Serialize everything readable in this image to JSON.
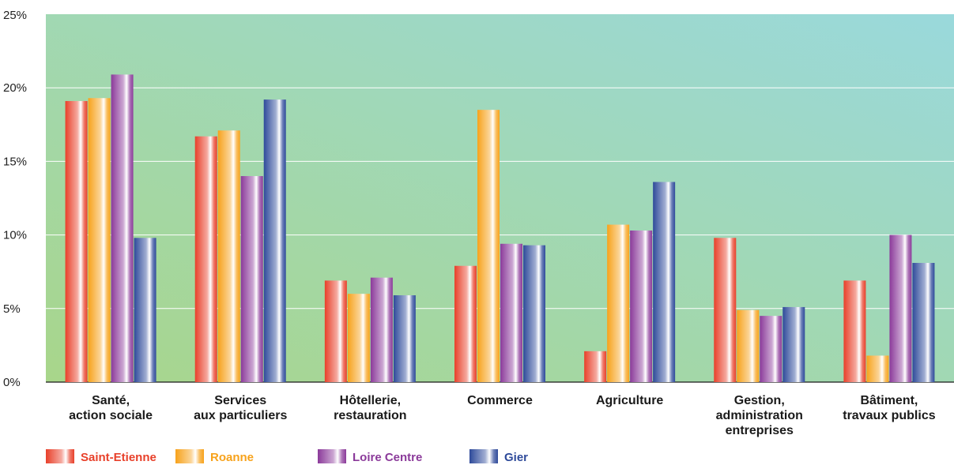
{
  "chart_data": {
    "type": "bar",
    "title": "",
    "xlabel": "",
    "ylabel": "",
    "ylim": [
      0,
      25
    ],
    "yticks": [
      0,
      5,
      10,
      15,
      20,
      25
    ],
    "ytick_labels": [
      "0%",
      "5%",
      "10%",
      "15%",
      "20%",
      "25%"
    ],
    "grid": true,
    "legend_position": "bottom-left",
    "categories": [
      [
        "Santé,",
        "action sociale"
      ],
      [
        "Services",
        "aux particuliers"
      ],
      [
        "Hôtellerie,",
        "restauration"
      ],
      [
        "Commerce"
      ],
      [
        "Agriculture"
      ],
      [
        "Gestion,",
        "administration",
        "entreprises"
      ],
      [
        "Bâtiment,",
        "travaux publics"
      ]
    ],
    "series": [
      {
        "name": "Saint-Etienne",
        "color": "#e8402a",
        "values": [
          19.1,
          16.7,
          6.9,
          7.9,
          2.1,
          9.8,
          6.9
        ]
      },
      {
        "name": "Roanne",
        "color": "#f7a21b",
        "values": [
          19.3,
          17.1,
          6.0,
          18.5,
          10.7,
          4.9,
          1.8
        ]
      },
      {
        "name": "Loire Centre",
        "color": "#8b3a9a",
        "values": [
          20.9,
          14.0,
          7.1,
          9.4,
          10.3,
          4.5,
          10.0
        ]
      },
      {
        "name": "Gier",
        "color": "#2e4a9a",
        "values": [
          9.8,
          19.2,
          5.9,
          9.3,
          13.6,
          5.1,
          8.1
        ]
      }
    ],
    "legend_text_colors": [
      "#e8402a",
      "#f7a21b",
      "#8b3a9a",
      "#2e4a9a"
    ],
    "background_gradient": [
      "#a8d68a",
      "#9ad9dc"
    ]
  }
}
